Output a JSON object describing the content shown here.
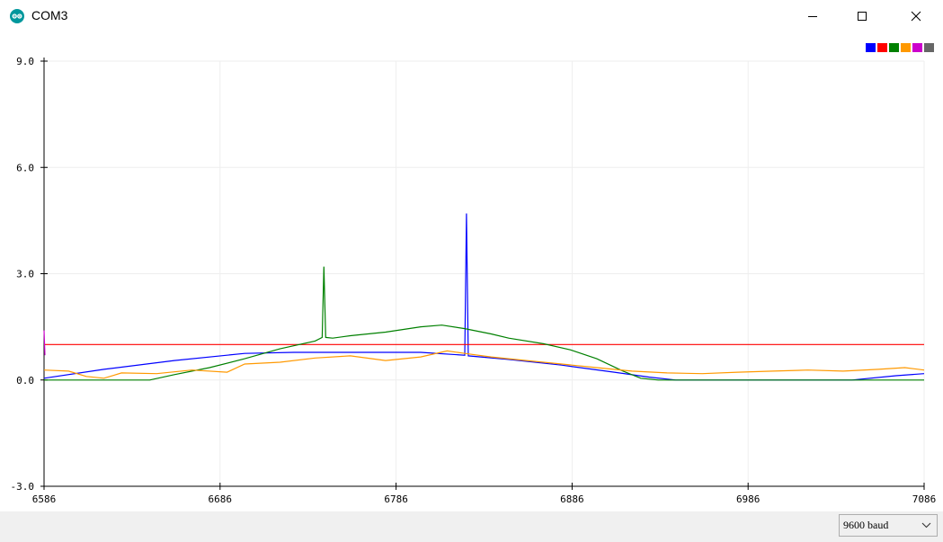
{
  "window": {
    "title": "COM3",
    "icon": "arduino-logo-icon",
    "controls": [
      "minimize-icon",
      "maximize-icon",
      "close-icon"
    ]
  },
  "legend_colors": [
    "#0000ff",
    "#ff0000",
    "#008000",
    "#ff9900",
    "#cc00cc",
    "#666666"
  ],
  "status": {
    "baud_selected": "9600 baud"
  },
  "chart_data": {
    "type": "line",
    "x_ticks": [
      "6586",
      "6686",
      "6786",
      "6886",
      "6986",
      "7086"
    ],
    "y_ticks": [
      "9.0",
      "6.0",
      "3.0",
      "0.0",
      "-3.0"
    ],
    "xlim": [
      6586,
      7086
    ],
    "ylim": [
      -3.0,
      9.0
    ],
    "grid": true,
    "legend_position": "top-right",
    "series": [
      {
        "color": "#0000ff",
        "points": [
          [
            6586,
            0.05
          ],
          [
            6620,
            0.3
          ],
          [
            6660,
            0.55
          ],
          [
            6700,
            0.75
          ],
          [
            6728,
            0.78
          ],
          [
            6800,
            0.78
          ],
          [
            6825,
            0.7
          ],
          [
            6826,
            4.7
          ],
          [
            6827,
            0.68
          ],
          [
            6850,
            0.58
          ],
          [
            6880,
            0.42
          ],
          [
            6910,
            0.22
          ],
          [
            6930,
            0.08
          ],
          [
            6945,
            0.0
          ],
          [
            7045,
            0.0
          ],
          [
            7070,
            0.12
          ],
          [
            7086,
            0.18
          ]
        ]
      },
      {
        "color": "#ff0000",
        "points": [
          [
            6586,
            1.0
          ],
          [
            7086,
            1.0
          ]
        ]
      },
      {
        "color": "#008000",
        "points": [
          [
            6586,
            0.0
          ],
          [
            6646,
            0.0
          ],
          [
            6660,
            0.15
          ],
          [
            6680,
            0.35
          ],
          [
            6700,
            0.6
          ],
          [
            6720,
            0.88
          ],
          [
            6740,
            1.1
          ],
          [
            6744,
            1.2
          ],
          [
            6745,
            3.2
          ],
          [
            6746,
            1.2
          ],
          [
            6750,
            1.18
          ],
          [
            6760,
            1.25
          ],
          [
            6780,
            1.35
          ],
          [
            6800,
            1.5
          ],
          [
            6812,
            1.55
          ],
          [
            6825,
            1.45
          ],
          [
            6840,
            1.3
          ],
          [
            6850,
            1.18
          ],
          [
            6870,
            1.02
          ],
          [
            6885,
            0.85
          ],
          [
            6900,
            0.6
          ],
          [
            6915,
            0.25
          ],
          [
            6925,
            0.05
          ],
          [
            6935,
            0.0
          ],
          [
            7086,
            0.0
          ]
        ]
      },
      {
        "color": "#ff9900",
        "points": [
          [
            6586,
            0.28
          ],
          [
            6600,
            0.25
          ],
          [
            6610,
            0.1
          ],
          [
            6620,
            0.05
          ],
          [
            6630,
            0.2
          ],
          [
            6650,
            0.18
          ],
          [
            6670,
            0.28
          ],
          [
            6690,
            0.22
          ],
          [
            6700,
            0.45
          ],
          [
            6720,
            0.5
          ],
          [
            6740,
            0.62
          ],
          [
            6760,
            0.68
          ],
          [
            6780,
            0.55
          ],
          [
            6800,
            0.65
          ],
          [
            6815,
            0.82
          ],
          [
            6825,
            0.75
          ],
          [
            6840,
            0.65
          ],
          [
            6860,
            0.55
          ],
          [
            6880,
            0.45
          ],
          [
            6900,
            0.35
          ],
          [
            6920,
            0.25
          ],
          [
            6940,
            0.2
          ],
          [
            6960,
            0.18
          ],
          [
            6980,
            0.22
          ],
          [
            7000,
            0.25
          ],
          [
            7020,
            0.28
          ],
          [
            7040,
            0.25
          ],
          [
            7060,
            0.3
          ],
          [
            7075,
            0.35
          ],
          [
            7086,
            0.28
          ]
        ]
      },
      {
        "color": "#cc00cc",
        "points": [
          [
            6586,
            1.4
          ],
          [
            6586.5,
            0.7
          ]
        ]
      }
    ]
  }
}
